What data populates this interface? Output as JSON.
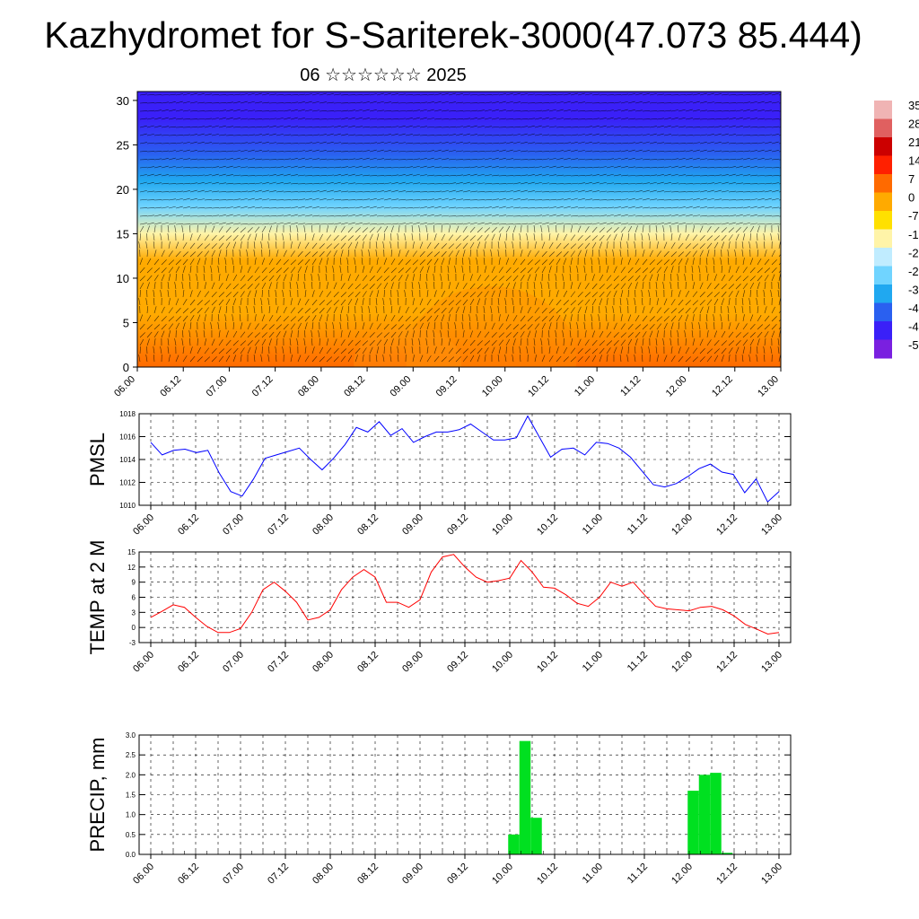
{
  "page": {
    "title": "Kazhydromet for S-Sariterek-3000(47.073 85.444)",
    "subtitle": "06 ☆☆☆☆☆☆ 2025"
  },
  "chart_data": [
    {
      "type": "heatmap",
      "name": "cross-section",
      "xlabel": "",
      "ylabel": "",
      "x_ticks": [
        "06.00",
        "06.12",
        "07.00",
        "07.12",
        "08.00",
        "08.12",
        "09.00",
        "09.12",
        "10.00",
        "10.12",
        "11.00",
        "11.12",
        "12.00",
        "12.12",
        "13.00"
      ],
      "y_ticks": [
        0,
        5,
        10,
        15,
        20,
        25,
        30
      ],
      "ylim": [
        0,
        31
      ],
      "colorbar_labels": [
        "35",
        "28",
        "21",
        "14",
        "7",
        "0",
        "-7",
        "-1",
        "-2",
        "-2",
        "-3",
        "-4",
        "-4",
        "-5"
      ],
      "colorbar_colors": [
        "#f0b4b4",
        "#e06060",
        "#cc0000",
        "#ff2000",
        "#ff6a00",
        "#ffaa00",
        "#ffe000",
        "#fff4a8",
        "#c0ecff",
        "#70d4ff",
        "#20a8f0",
        "#2a60f0",
        "#3a20f8",
        "#7a20e0"
      ],
      "temperature_levels": [
        {
          "height": 0,
          "value": 5
        },
        {
          "height": 6,
          "value": 3
        },
        {
          "height": 12,
          "value": -3
        },
        {
          "height": 15,
          "value": -12
        },
        {
          "height": 18,
          "value": -25
        },
        {
          "height": 21,
          "value": -38
        },
        {
          "height": 24,
          "value": -45
        },
        {
          "height": 28,
          "value": -52
        }
      ]
    },
    {
      "type": "line",
      "name": "PMSL",
      "ylabel": "PMSL",
      "color": "#0000ff",
      "x_ticks": [
        "06.00",
        "06.12",
        "07.00",
        "07.12",
        "08.00",
        "08.12",
        "09.00",
        "09.12",
        "10.00",
        "10.12",
        "11.00",
        "11.12",
        "12.00",
        "12.12",
        "13.00"
      ],
      "y_ticks": [
        1010,
        1012,
        1014,
        1016,
        1018
      ],
      "ylim": [
        1010,
        1018
      ],
      "grid": true,
      "values": [
        1015.5,
        1014.4,
        1014.8,
        1014.9,
        1014.6,
        1014.8,
        1012.8,
        1011.2,
        1010.8,
        1012.3,
        1014.1,
        1014.4,
        1014.7,
        1015.0,
        1014.0,
        1013.1,
        1014.1,
        1015.3,
        1016.8,
        1016.4,
        1017.3,
        1016.1,
        1016.7,
        1015.5,
        1016.0,
        1016.4,
        1016.4,
        1016.6,
        1017.1,
        1016.4,
        1015.7,
        1015.7,
        1015.9,
        1017.8,
        1016.0,
        1014.2,
        1014.9,
        1015.0,
        1014.4,
        1015.5,
        1015.4,
        1015.0,
        1014.2,
        1013.0,
        1011.8,
        1011.6,
        1011.9,
        1012.5,
        1013.2,
        1013.6,
        1012.9,
        1012.7,
        1011.1,
        1012.3,
        1010.3,
        1011.2
      ]
    },
    {
      "type": "line",
      "name": "TEMP at 2 M",
      "ylabel": "TEMP at 2 M",
      "color": "#ff0000",
      "x_ticks": [
        "06.00",
        "06.12",
        "07.00",
        "07.12",
        "08.00",
        "08.12",
        "09.00",
        "09.12",
        "10.00",
        "10.12",
        "11.00",
        "11.12",
        "12.00",
        "12.12",
        "13.00"
      ],
      "y_ticks": [
        -3,
        0,
        3,
        6,
        9,
        12,
        15
      ],
      "ylim": [
        -3,
        15
      ],
      "grid": true,
      "values": [
        2.0,
        3.2,
        4.5,
        4.0,
        2.0,
        0.2,
        -1.0,
        -1.0,
        -0.2,
        3.0,
        7.5,
        9.0,
        7.2,
        5.0,
        1.5,
        2.0,
        3.5,
        7.5,
        10.0,
        11.5,
        10.0,
        5.0,
        5.0,
        4.0,
        5.5,
        11.0,
        14.0,
        14.5,
        12.0,
        10.0,
        9.0,
        9.3,
        9.8,
        13.3,
        11.0,
        8.0,
        7.8,
        6.5,
        4.8,
        4.2,
        6.0,
        9.0,
        8.2,
        9.0,
        6.5,
        4.2,
        3.7,
        3.5,
        3.3,
        4.0,
        4.2,
        3.5,
        2.3,
        0.6,
        -0.3,
        -1.3,
        -1.0
      ]
    },
    {
      "type": "bar",
      "name": "PRECIP, mm",
      "ylabel": "PRECIP, mm",
      "color": "#00e020",
      "x_ticks": [
        "06.00",
        "06.12",
        "07.00",
        "07.12",
        "08.00",
        "08.12",
        "09.00",
        "09.12",
        "10.00",
        "10.12",
        "11.00",
        "11.12",
        "12.00",
        "12.12",
        "13.00"
      ],
      "y_ticks": [
        "0.0",
        "0.5",
        "1.0",
        "1.5",
        "2.0",
        "2.5",
        "3.0"
      ],
      "ylim": [
        0,
        3.0
      ],
      "grid": true,
      "bars": [
        {
          "x": "10.03",
          "value": 0.5
        },
        {
          "x": "10.06",
          "value": 2.85
        },
        {
          "x": "10.09",
          "value": 0.92
        },
        {
          "x": "12.03",
          "value": 1.6
        },
        {
          "x": "12.06",
          "value": 2.0
        },
        {
          "x": "12.09",
          "value": 2.05
        },
        {
          "x": "12.12",
          "value": 0.04
        }
      ]
    }
  ]
}
